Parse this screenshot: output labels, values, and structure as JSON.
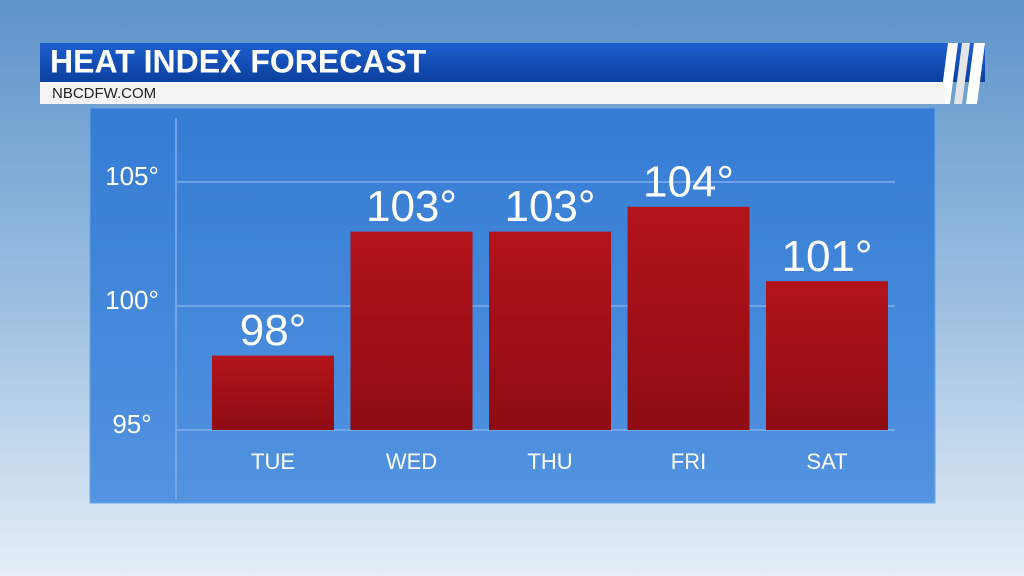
{
  "chart_data": {
    "type": "bar",
    "title": "HEAT INDEX FORECAST",
    "subtitle": "NBCDFW.COM",
    "categories": [
      "TUE",
      "WED",
      "THU",
      "FRI",
      "SAT"
    ],
    "values": [
      98,
      103,
      103,
      104,
      101
    ],
    "value_labels": [
      "98°",
      "103°",
      "103°",
      "104°",
      "101°"
    ],
    "color": "#b3141b",
    "ylim": [
      95,
      107.5
    ],
    "yticks": [
      {
        "value": 95,
        "label": "95°"
      },
      {
        "value": 100,
        "label": "100°"
      },
      {
        "value": 105,
        "label": "105°"
      }
    ],
    "grid": true
  }
}
